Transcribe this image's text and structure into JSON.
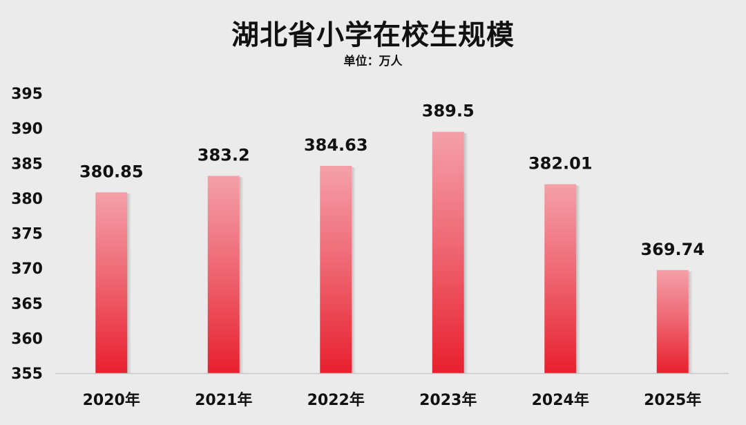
{
  "chart_data": {
    "type": "bar",
    "title": "湖北省小学在校生规模",
    "subtitle": "单位：万人",
    "categories": [
      "2020年",
      "2021年",
      "2022年",
      "2023年",
      "2024年",
      "2025年"
    ],
    "values": [
      380.85,
      383.2,
      384.63,
      389.5,
      382.01,
      369.74
    ],
    "value_labels": [
      "380.85",
      "383.2",
      "384.63",
      "389.5",
      "382.01",
      "369.74"
    ],
    "ylim": [
      355,
      395
    ],
    "yticks": [
      395,
      390,
      385,
      380,
      375,
      370,
      365,
      360,
      355
    ],
    "grid": false,
    "legend": "none",
    "colors": {
      "bar_top": "#f4a0a8",
      "bar_bottom": "#e8202e",
      "background": "#ebebeb",
      "axis": "#c8c8c8"
    }
  }
}
